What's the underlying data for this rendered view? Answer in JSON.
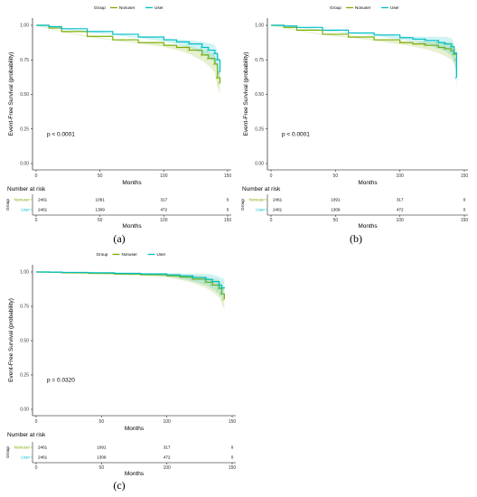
{
  "colors": {
    "Nonuser": "#7CAE00",
    "User": "#00BFC4"
  },
  "chart_data": [
    {
      "type": "line",
      "panel_label": "(a)",
      "legend_title": "Group",
      "legend_position": "top",
      "xlabel": "Months",
      "ylabel": "Event-Free Survival (probability)",
      "xlim": [
        0,
        150
      ],
      "ylim": [
        0,
        1
      ],
      "xticks": [
        0,
        50,
        100,
        150
      ],
      "yticks": [
        "0.00",
        "0.25",
        "0.50",
        "0.75",
        "1.00"
      ],
      "grid": false,
      "annotation": "p < 0.0001",
      "series": [
        {
          "name": "Nonuser",
          "x": [
            0,
            10,
            20,
            40,
            60,
            80,
            100,
            110,
            120,
            130,
            135,
            140,
            142,
            144
          ],
          "y": [
            1.0,
            0.98,
            0.955,
            0.92,
            0.895,
            0.875,
            0.855,
            0.84,
            0.82,
            0.785,
            0.76,
            0.72,
            0.62,
            0.58
          ]
        },
        {
          "name": "User",
          "x": [
            0,
            10,
            20,
            40,
            60,
            80,
            100,
            110,
            120,
            130,
            135,
            140,
            142,
            144
          ],
          "y": [
            1.0,
            0.99,
            0.975,
            0.955,
            0.935,
            0.915,
            0.895,
            0.88,
            0.865,
            0.84,
            0.82,
            0.795,
            0.75,
            0.66
          ]
        }
      ],
      "risk_table": {
        "title": "Number at risk",
        "ylabel": "Group",
        "xlabel": "Months",
        "xticks": [
          0,
          50,
          100,
          150
        ],
        "times": [
          0,
          50,
          100,
          150
        ],
        "rows": [
          {
            "group": "Nonuser",
            "counts": [
              "2461",
              "1091",
              "317",
              "0"
            ]
          },
          {
            "group": "User",
            "counts": [
              "2461",
              "1309",
              "472",
              "0"
            ]
          }
        ]
      }
    },
    {
      "type": "line",
      "panel_label": "(b)",
      "legend_title": "Group",
      "legend_position": "top",
      "xlabel": "Months",
      "ylabel": "Event-Free Survival (probability)",
      "xlim": [
        0,
        150
      ],
      "ylim": [
        0,
        1
      ],
      "xticks": [
        0,
        50,
        100,
        150
      ],
      "yticks": [
        "0.00",
        "0.25",
        "0.50",
        "0.75",
        "1.00"
      ],
      "grid": false,
      "annotation": "p < 0.0001",
      "series": [
        {
          "name": "Nonuser",
          "x": [
            0,
            10,
            20,
            40,
            60,
            80,
            100,
            110,
            120,
            130,
            135,
            140,
            142,
            144
          ],
          "y": [
            1.0,
            0.985,
            0.965,
            0.935,
            0.915,
            0.895,
            0.875,
            0.865,
            0.855,
            0.84,
            0.83,
            0.815,
            0.79,
            0.75
          ]
        },
        {
          "name": "User",
          "x": [
            0,
            10,
            20,
            40,
            60,
            80,
            100,
            110,
            120,
            130,
            135,
            140,
            142,
            144
          ],
          "y": [
            1.0,
            0.995,
            0.985,
            0.965,
            0.945,
            0.93,
            0.91,
            0.9,
            0.89,
            0.875,
            0.865,
            0.845,
            0.8,
            0.62
          ]
        }
      ],
      "risk_table": {
        "title": "Number at risk",
        "ylabel": "Group",
        "xlabel": "Months",
        "xticks": [
          0,
          50,
          100,
          150
        ],
        "times": [
          0,
          50,
          100,
          150
        ],
        "rows": [
          {
            "group": "Nonuser",
            "counts": [
              "2461",
              "1091",
              "317",
              "0"
            ]
          },
          {
            "group": "User",
            "counts": [
              "2461",
              "1309",
              "472",
              "0"
            ]
          }
        ]
      }
    },
    {
      "type": "line",
      "panel_label": "(c)",
      "legend_title": "Group",
      "legend_position": "top",
      "xlabel": "Months",
      "ylabel": "Event-Free Survival (probability)",
      "xlim": [
        0,
        150
      ],
      "ylim": [
        0,
        1
      ],
      "xticks": [
        0,
        50,
        100,
        150
      ],
      "yticks": [
        "0.00",
        "0.25",
        "0.50",
        "0.75",
        "1.00"
      ],
      "grid": false,
      "annotation": "p = 0.0320",
      "series": [
        {
          "name": "Nonuser",
          "x": [
            0,
            10,
            20,
            40,
            60,
            80,
            100,
            110,
            120,
            130,
            135,
            140,
            142,
            144
          ],
          "y": [
            1.0,
            0.998,
            0.994,
            0.99,
            0.985,
            0.98,
            0.972,
            0.962,
            0.948,
            0.925,
            0.905,
            0.88,
            0.84,
            0.8
          ]
        },
        {
          "name": "User",
          "x": [
            0,
            10,
            20,
            40,
            60,
            80,
            100,
            110,
            120,
            130,
            135,
            140,
            142,
            144
          ],
          "y": [
            1.0,
            0.999,
            0.997,
            0.994,
            0.99,
            0.986,
            0.98,
            0.972,
            0.96,
            0.945,
            0.93,
            0.905,
            0.885,
            0.88
          ]
        }
      ],
      "risk_table": {
        "title": "Number at risk",
        "ylabel": "Group",
        "xlabel": "Months",
        "xticks": [
          0,
          50,
          100,
          150
        ],
        "times": [
          0,
          50,
          100,
          150
        ],
        "rows": [
          {
            "group": "Nonuser",
            "counts": [
              "2461",
              "1091",
              "317",
              "0"
            ]
          },
          {
            "group": "User",
            "counts": [
              "2461",
              "1309",
              "472",
              "0"
            ]
          }
        ]
      }
    }
  ]
}
